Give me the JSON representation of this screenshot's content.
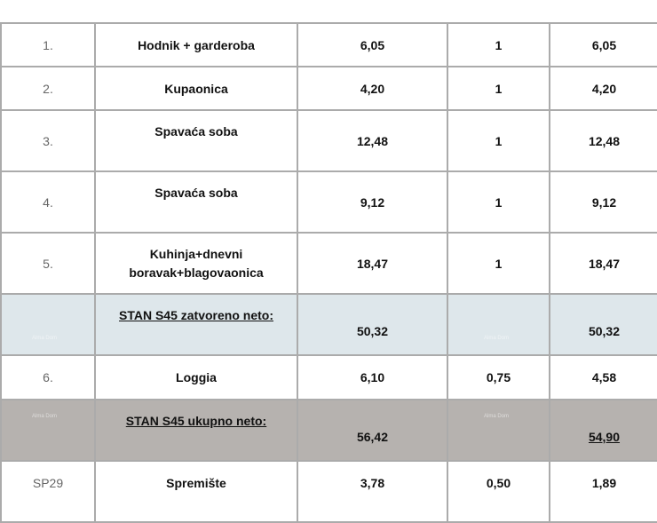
{
  "watermark": "Alma Dom",
  "rows": [
    {
      "no": "1.",
      "name": "Hodnik + garderoba",
      "area": "6,05",
      "coef": "1",
      "net": "6,05"
    },
    {
      "no": "2.",
      "name": "Kupaonica",
      "area": "4,20",
      "coef": "1",
      "net": "4,20"
    },
    {
      "no": "3.",
      "name": "Spavaća soba",
      "area": "12,48",
      "coef": "1",
      "net": "12,48"
    },
    {
      "no": "4.",
      "name": "Spavaća soba",
      "area": "9,12",
      "coef": "1",
      "net": "9,12"
    },
    {
      "no": "5.",
      "name_line1": "Kuhinja+dnevni",
      "name_line2": "boravak+blagovaonica",
      "area": "18,47",
      "coef": "1",
      "net": "18,47"
    },
    {
      "no": "",
      "name": "STAN S45 zatvoreno neto:",
      "area": "50,32",
      "coef": "",
      "net": "50,32"
    },
    {
      "no": "6.",
      "name": "Loggia",
      "area": "6,10",
      "coef": "0,75",
      "net": "4,58"
    },
    {
      "no": "",
      "name": "STAN S45 ukupno neto:",
      "area": "56,42",
      "coef": "",
      "net": "54,90"
    },
    {
      "no": "SP29",
      "name": "Spremište",
      "area": "3,78",
      "coef": "0,50",
      "net": "1,89"
    }
  ]
}
